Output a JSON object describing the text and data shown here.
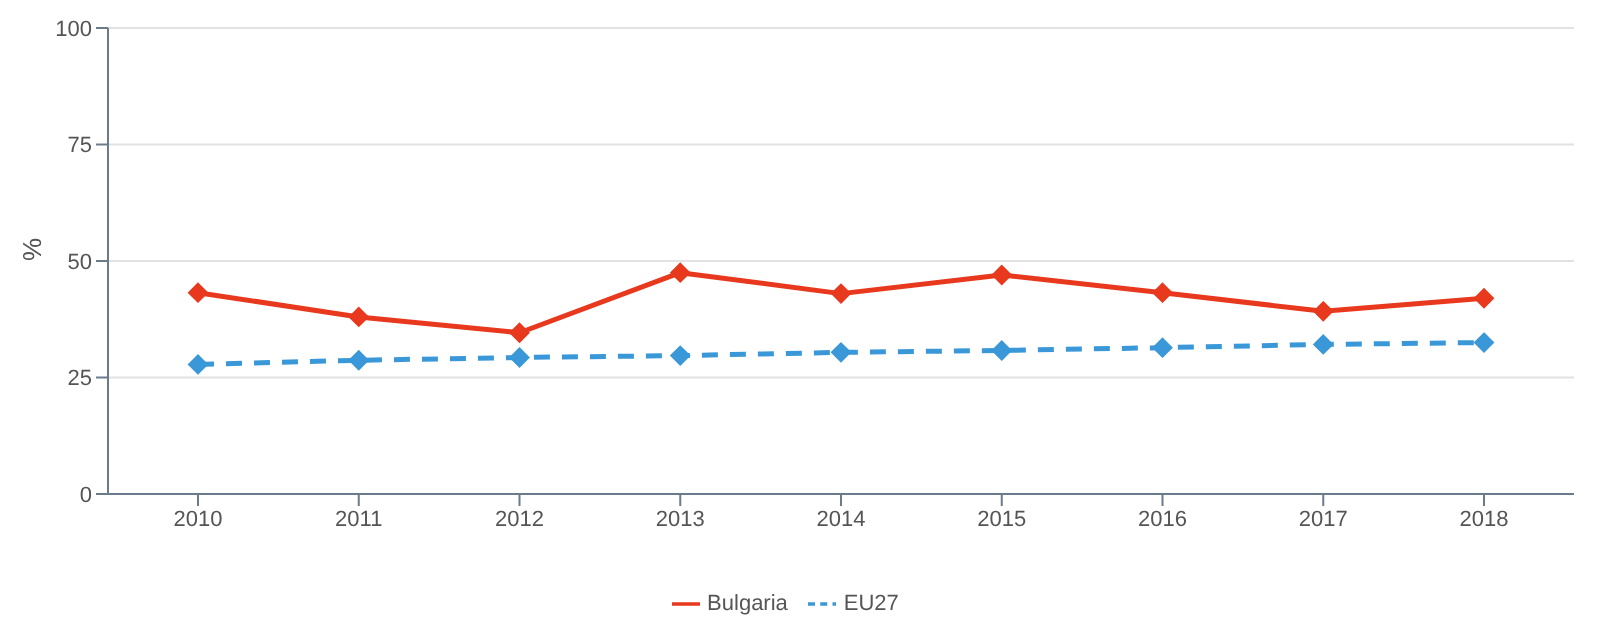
{
  "chart_data": {
    "type": "line",
    "ylabel": "%",
    "categories": [
      "2010",
      "2011",
      "2012",
      "2013",
      "2014",
      "2015",
      "2016",
      "2017",
      "2018"
    ],
    "series": [
      {
        "name": "Bulgaria",
        "color": "#e8391e",
        "line_style": "solid",
        "values": [
          43.2,
          38,
          34.6,
          47.5,
          43,
          47,
          43.2,
          39.2,
          42
        ]
      },
      {
        "name": "EU27",
        "color": "#3a98d8",
        "line_style": "dashed",
        "values": [
          27.8,
          28.7,
          29.3,
          29.7,
          30.4,
          30.8,
          31.4,
          32.1,
          32.5
        ]
      }
    ],
    "ylim": [
      0,
      100
    ],
    "yticks": [
      0,
      25,
      50,
      75,
      100
    ],
    "grid": "y",
    "legend": "bottom",
    "marker": "diamond"
  }
}
